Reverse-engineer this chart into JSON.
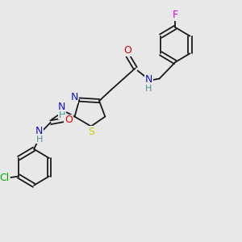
{
  "bg": "#e8e8e8",
  "figsize": [
    3.0,
    3.0
  ],
  "dpi": 100,
  "bond_color": "#1a1a1a",
  "lw": 1.3,
  "colors": {
    "N": "#1010cc",
    "O": "#dd0000",
    "S": "#cccc00",
    "F": "#dd00dd",
    "Cl": "#00aa00",
    "H": "#4a9090",
    "C": "#1a1a1a"
  },
  "fs": 9.0
}
